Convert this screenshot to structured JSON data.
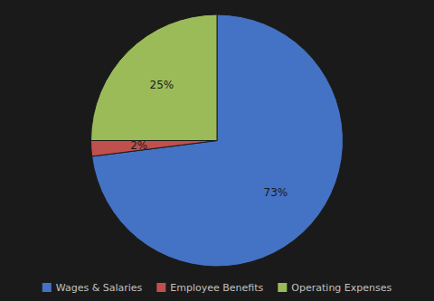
{
  "chart_data": {
    "type": "pie",
    "categories": [
      "Wages & Salaries",
      "Employee Benefits",
      "Operating Expenses"
    ],
    "values": [
      73,
      2,
      25
    ],
    "value_labels": [
      "73%",
      "2%",
      "25%"
    ],
    "colors": [
      "#4472C4",
      "#C0504D",
      "#9BBB59"
    ],
    "data_labels": true,
    "legend": "bottom"
  }
}
